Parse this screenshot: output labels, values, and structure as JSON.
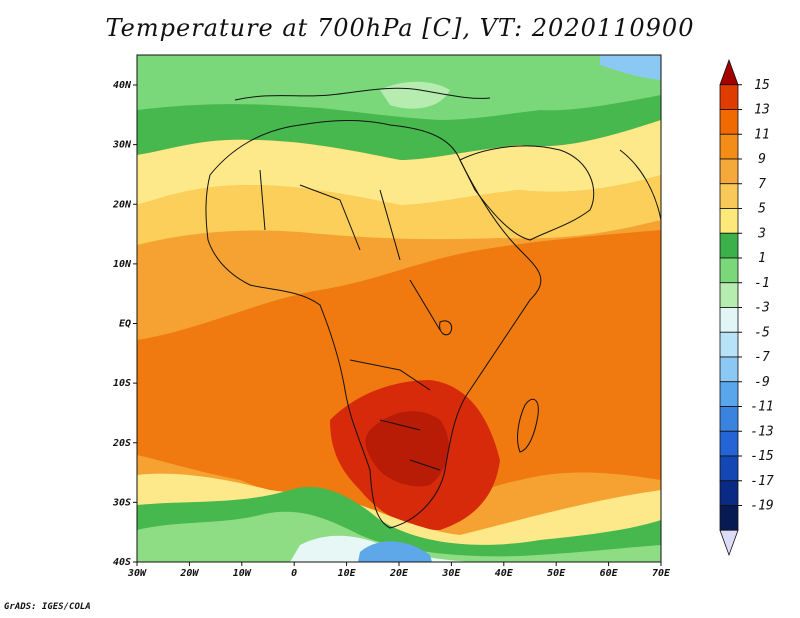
{
  "title": "Temperature at 700hPa [C], VT: 2020110900",
  "footer": "GrADS: IGES/COLA",
  "map": {
    "x_ticks": [
      "30W",
      "20W",
      "10W",
      "0",
      "10E",
      "20E",
      "30E",
      "40E",
      "50E",
      "60E",
      "70E"
    ],
    "y_ticks": [
      "40N",
      "30N",
      "20N",
      "10N",
      "EQ",
      "10S",
      "20S",
      "30S",
      "40S"
    ]
  },
  "colorbar": {
    "labels": [
      "15",
      "13",
      "11",
      "9",
      "7",
      "5",
      "3",
      "1",
      "-1",
      "-3",
      "-5",
      "-7",
      "-9",
      "-11",
      "-13",
      "-15",
      "-17",
      "-19"
    ],
    "colors": [
      "#a50000",
      "#e03c00",
      "#f06a00",
      "#f28d18",
      "#f5a93a",
      "#f8c858",
      "#fde87a",
      "#3cb04a",
      "#7ad77a",
      "#b6ecb0",
      "#e2f7f5",
      "#b8e2f8",
      "#8cc8f4",
      "#5aa6ec",
      "#3a84e0",
      "#2464d4",
      "#1446b4",
      "#0a2a86",
      "#081a52",
      "#dcdcf8"
    ]
  },
  "palette": {
    "hot": "#d62a0a",
    "warm": "#f07a10",
    "orange": "#f5a232",
    "light_orange": "#fbcf5a",
    "yellow": "#fde88a",
    "green": "#46b84e",
    "light_green": "#8edc84",
    "pale": "#ccefc6",
    "ice": "#e6f7f6",
    "light_blue": "#9cd0f2",
    "blue": "#5ea8ea"
  }
}
